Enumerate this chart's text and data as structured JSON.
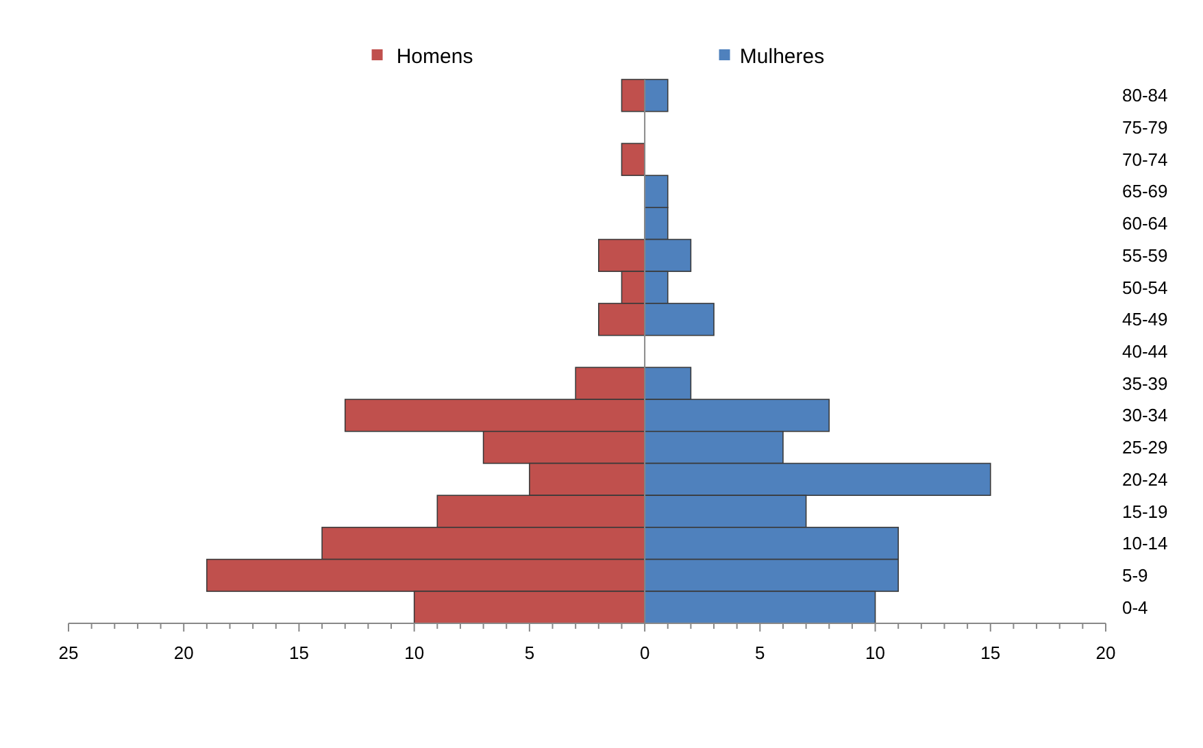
{
  "chart_data": {
    "type": "bar",
    "orientation": "horizontal",
    "stacked": true,
    "categories": [
      "80-84",
      "75-79",
      "70-74",
      "65-69",
      "60-64",
      "55-59",
      "50-54",
      "45-49",
      "40-44",
      "35-39",
      "30-34",
      "25-29",
      "20-24",
      "15-19",
      "10-14",
      "5-9",
      "0-4"
    ],
    "series": [
      {
        "name": "Homens",
        "color": "#c0504d",
        "values": [
          -1,
          0,
          -1,
          0,
          0,
          -2,
          -1,
          -2,
          0,
          -3,
          -13,
          -7,
          -5,
          -9,
          -14,
          -19,
          -10
        ]
      },
      {
        "name": "Mulheres",
        "color": "#4f81bd",
        "values": [
          1,
          0,
          0,
          1,
          1,
          2,
          1,
          3,
          0,
          2,
          8,
          6,
          15,
          7,
          11,
          11,
          10
        ]
      }
    ],
    "xlim": [
      -25,
      20
    ],
    "xticks": [
      {
        "value": -25,
        "label": "25"
      },
      {
        "value": -24,
        "label": null
      },
      {
        "value": -23,
        "label": null
      },
      {
        "value": -22,
        "label": null
      },
      {
        "value": -21,
        "label": null
      },
      {
        "value": -20,
        "label": "20"
      },
      {
        "value": -19,
        "label": null
      },
      {
        "value": -18,
        "label": null
      },
      {
        "value": -17,
        "label": null
      },
      {
        "value": -16,
        "label": null
      },
      {
        "value": -15,
        "label": "15"
      },
      {
        "value": -14,
        "label": null
      },
      {
        "value": -13,
        "label": null
      },
      {
        "value": -12,
        "label": null
      },
      {
        "value": -11,
        "label": null
      },
      {
        "value": -10,
        "label": "10"
      },
      {
        "value": -9,
        "label": null
      },
      {
        "value": -8,
        "label": null
      },
      {
        "value": -7,
        "label": null
      },
      {
        "value": -6,
        "label": null
      },
      {
        "value": -5,
        "label": "5"
      },
      {
        "value": -4,
        "label": null
      },
      {
        "value": -3,
        "label": null
      },
      {
        "value": -2,
        "label": null
      },
      {
        "value": -1,
        "label": null
      },
      0,
      {
        "value": 1,
        "label": null
      },
      {
        "value": 2,
        "label": null
      },
      {
        "value": 3,
        "label": null
      },
      {
        "value": 4,
        "label": null
      },
      5,
      {
        "value": 6,
        "label": null
      },
      {
        "value": 7,
        "label": null
      },
      {
        "value": 8,
        "label": null
      },
      {
        "value": 9,
        "label": null
      },
      10,
      {
        "value": 11,
        "label": null
      },
      {
        "value": 12,
        "label": null
      },
      {
        "value": 13,
        "label": null
      },
      {
        "value": 14,
        "label": null
      },
      15,
      {
        "value": 16,
        "label": null
      },
      {
        "value": 17,
        "label": null
      },
      {
        "value": 18,
        "label": null
      },
      {
        "value": 19,
        "label": null
      },
      20
    ],
    "legend": "top"
  }
}
